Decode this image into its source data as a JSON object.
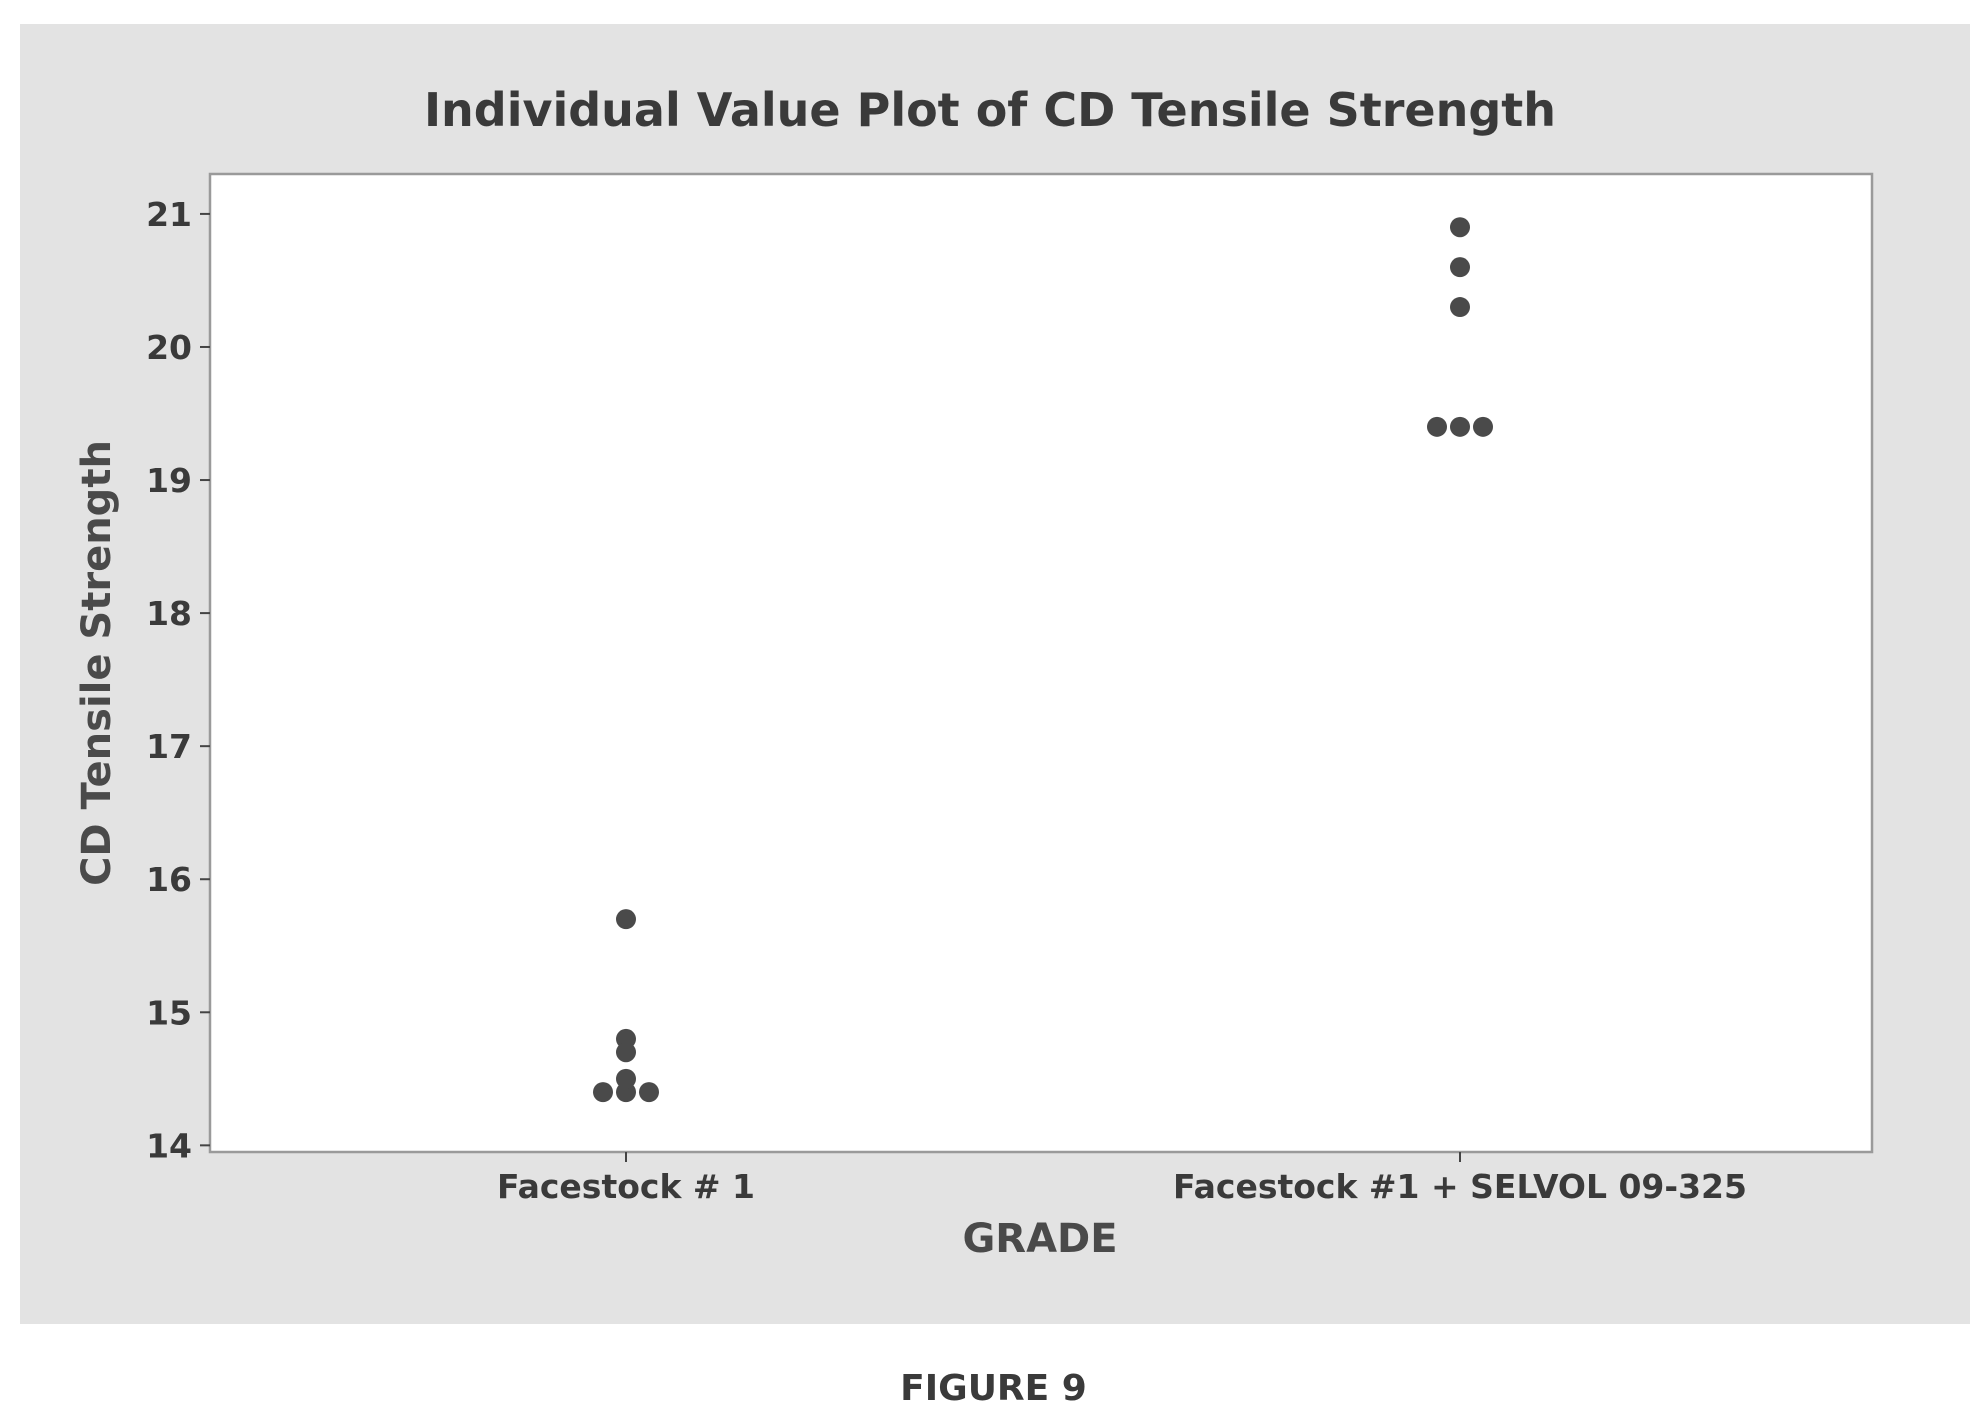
{
  "chart_data": {
    "type": "scatter",
    "title": "Individual Value Plot of CD Tensile Strength",
    "xlabel": "GRADE",
    "ylabel": "CD Tensile Strength",
    "categories": [
      "Facestock # 1",
      "Facestock #1 + SELVOL  09-325"
    ],
    "ylim": [
      13.95,
      21.3
    ],
    "yticks": [
      14,
      15,
      16,
      17,
      18,
      19,
      20,
      21
    ],
    "grid": false,
    "legend": "none",
    "series": [
      {
        "values": [
          [
            15.7,
            14.8,
            14.7,
            14.4,
            14.4,
            14.4,
            14.5
          ],
          [
            20.9,
            20.6,
            20.3,
            19.4,
            19.4,
            19.4
          ]
        ]
      }
    ],
    "colors": {
      "points": "#4a4a4a",
      "frame_background": "#e3e3e3",
      "plot_background": "#ffffff",
      "plot_border": "#9a9a9a"
    }
  },
  "caption": "FIGURE 9"
}
